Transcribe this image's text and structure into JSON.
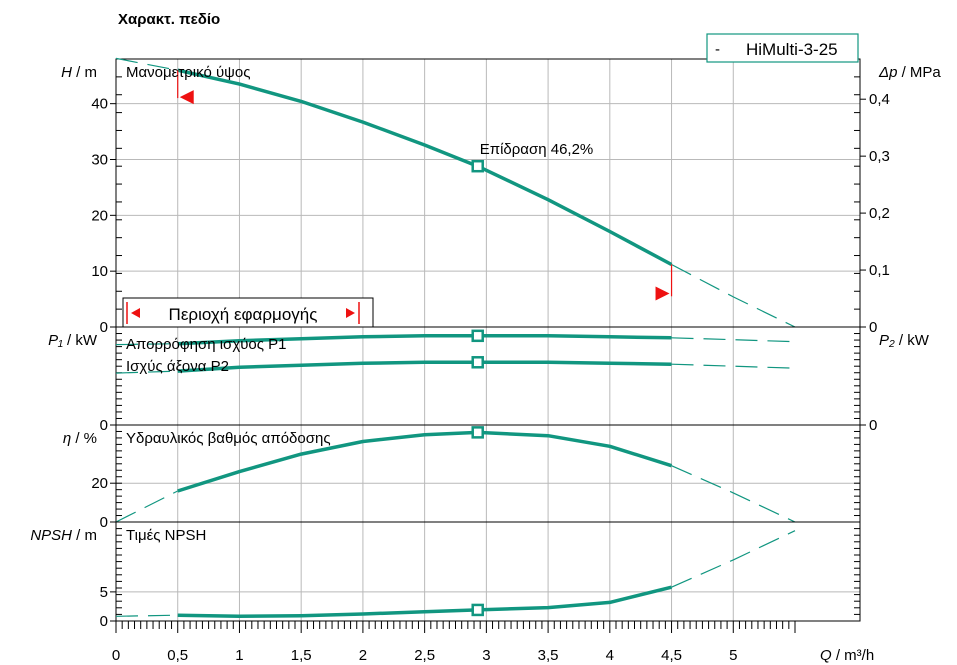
{
  "colors": {
    "curve": "#119680",
    "accent": "#ee1111",
    "grid": "#b9b9b9",
    "text": "#000000"
  },
  "chart_data": {
    "type": "line",
    "title": "Χαρακτ. πεδίο",
    "xlabel": {
      "var": "Q",
      "unit": " / m³/h"
    },
    "xlim": [
      0,
      5.5
    ],
    "x_ticks": [
      "0",
      "0,5",
      "1",
      "1,5",
      "2",
      "2,5",
      "3",
      "3,5",
      "4",
      "4,5",
      "5"
    ],
    "legend": {
      "text": "HiMulti-3-25",
      "marker": "-",
      "position": "top-right"
    },
    "operating_region": {
      "label": "Περιοχή εφαρμογής",
      "q_min": 0.5,
      "q_max": 4.5
    },
    "panels": [
      {
        "id": "head",
        "label": "Μανομετρικό ύψος",
        "ylabel_left": {
          "var": "H",
          "unit": " / m"
        },
        "ylabel_right": {
          "var": "Δp",
          "unit": " / MPa"
        },
        "ylim": [
          0,
          48
        ],
        "left_ticks": [
          {
            "v": 0,
            "t": "0"
          },
          {
            "v": 10,
            "t": "10"
          },
          {
            "v": 20,
            "t": "20"
          },
          {
            "v": 30,
            "t": "30"
          },
          {
            "v": 40,
            "t": "40"
          }
        ],
        "right_ticks": [
          {
            "v": 0,
            "t": "0"
          },
          {
            "v": 10.2,
            "t": "0,1"
          },
          {
            "v": 20.4,
            "t": "0,2"
          },
          {
            "v": 30.6,
            "t": "0,3"
          },
          {
            "v": 40.8,
            "t": "0,4"
          }
        ],
        "annotation": "Επίδραση  46,2%",
        "duty_point": {
          "x": 2.93,
          "y": 28.8
        },
        "series_solid": [
          [
            0.5,
            46.0
          ],
          [
            1,
            43.5
          ],
          [
            1.5,
            40.4
          ],
          [
            2,
            36.7
          ],
          [
            2.5,
            32.6
          ],
          [
            2.93,
            28.8
          ],
          [
            3.5,
            22.8
          ],
          [
            4,
            17.1
          ],
          [
            4.5,
            11.2
          ]
        ],
        "series_dashed": [
          [
            0,
            48.1
          ],
          [
            0.5,
            46.0
          ],
          [
            4.5,
            11.2
          ],
          [
            5,
            5.4
          ],
          [
            5.5,
            0
          ]
        ]
      },
      {
        "id": "power",
        "labels": [
          "Απορρόφηση ισχύος P1",
          "Ισχύς άξονα  P2"
        ],
        "ylabel_left": {
          "var": "P₁",
          "unit": " / kW"
        },
        "ylabel_right": {
          "var": "P₂",
          "unit": " / kW"
        },
        "ylim": [
          0,
          1
        ],
        "left_ticks": [
          {
            "v": 0,
            "t": "0"
          }
        ],
        "right_ticks": [
          {
            "v": 0,
            "t": "0"
          }
        ],
        "duty_points": [
          {
            "x": 2.93,
            "y": 0.91
          },
          {
            "x": 2.93,
            "y": 0.64
          }
        ],
        "series": [
          {
            "name": "P1",
            "solid": [
              [
                0.5,
                0.83
              ],
              [
                1,
                0.86
              ],
              [
                1.5,
                0.88
              ],
              [
                2,
                0.9
              ],
              [
                2.5,
                0.91
              ],
              [
                2.93,
                0.91
              ],
              [
                3.5,
                0.91
              ],
              [
                4,
                0.9
              ],
              [
                4.5,
                0.89
              ]
            ],
            "dashed": [
              [
                0,
                0.82
              ],
              [
                0.5,
                0.83
              ],
              [
                4.5,
                0.89
              ],
              [
                5,
                0.87
              ],
              [
                5.5,
                0.85
              ]
            ]
          },
          {
            "name": "P2",
            "solid": [
              [
                0.5,
                0.55
              ],
              [
                1,
                0.59
              ],
              [
                1.5,
                0.61
              ],
              [
                2,
                0.63
              ],
              [
                2.5,
                0.64
              ],
              [
                2.93,
                0.64
              ],
              [
                3.5,
                0.64
              ],
              [
                4,
                0.63
              ],
              [
                4.5,
                0.62
              ]
            ],
            "dashed": [
              [
                0,
                0.53
              ],
              [
                0.5,
                0.55
              ],
              [
                4.5,
                0.62
              ],
              [
                5,
                0.6
              ],
              [
                5.5,
                0.58
              ]
            ]
          }
        ]
      },
      {
        "id": "efficiency",
        "label": "Υδραυλικός βαθμός απόδοσης",
        "ylabel_left": {
          "var": "η",
          "unit": " / %"
        },
        "ylim": [
          0,
          50
        ],
        "left_ticks": [
          {
            "v": 0,
            "t": "0"
          },
          {
            "v": 20,
            "t": "20"
          }
        ],
        "duty_point": {
          "x": 2.93,
          "y": 46.2
        },
        "series_solid": [
          [
            0.5,
            16
          ],
          [
            1,
            26
          ],
          [
            1.5,
            35
          ],
          [
            2,
            41.5
          ],
          [
            2.5,
            45
          ],
          [
            2.93,
            46.2
          ],
          [
            3.5,
            44.5
          ],
          [
            4,
            39
          ],
          [
            4.5,
            29
          ]
        ],
        "series_dashed": [
          [
            0,
            0
          ],
          [
            0.5,
            16
          ],
          [
            4.5,
            29
          ],
          [
            5,
            15
          ],
          [
            5.5,
            0
          ]
        ]
      },
      {
        "id": "npsh",
        "label": "Τιμές NPSH",
        "ylabel_left": {
          "var": "NPSH",
          "unit": "  / m"
        },
        "ylim": [
          0,
          17
        ],
        "left_ticks": [
          {
            "v": 0,
            "t": "0"
          },
          {
            "v": 5,
            "t": "5"
          }
        ],
        "duty_point": {
          "x": 2.93,
          "y": 1.9
        },
        "series_solid": [
          [
            0.5,
            1.0
          ],
          [
            1,
            0.8
          ],
          [
            1.5,
            0.9
          ],
          [
            2,
            1.2
          ],
          [
            2.5,
            1.6
          ],
          [
            2.93,
            1.9
          ],
          [
            3.5,
            2.3
          ],
          [
            4,
            3.2
          ],
          [
            4.5,
            5.8
          ]
        ],
        "series_dashed": [
          [
            0,
            0.8
          ],
          [
            0.5,
            1.0
          ],
          [
            4.5,
            5.8
          ],
          [
            5,
            10.5
          ],
          [
            5.5,
            15.5
          ]
        ]
      }
    ]
  }
}
